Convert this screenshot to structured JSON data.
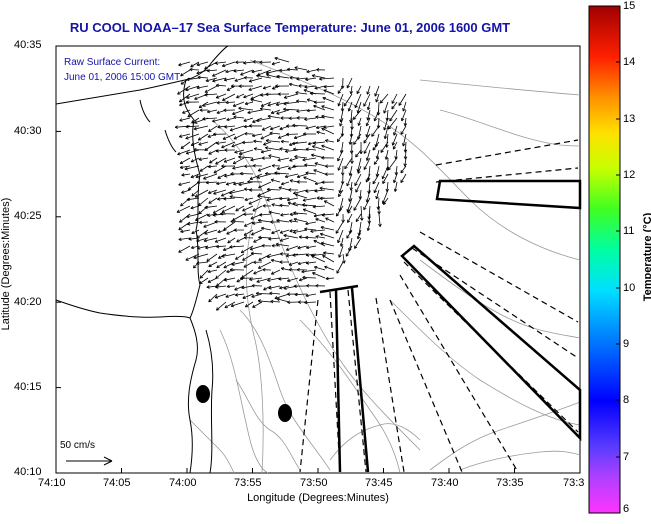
{
  "title": "RU COOL  NOAA–17  Sea Surface Temperature:  June 01, 2006 1600 GMT",
  "annotation_line1": "Raw Surface Current:",
  "annotation_line2": "June 01, 2006 15:00 GMT",
  "scale_label": "50 cm/s",
  "chart_data": {
    "type": "map",
    "xlabel": "Longitude (Degrees:Minutes)",
    "ylabel": "Latitude (Degrees:Minutes)",
    "x_ticks": [
      "74:10",
      "74:05",
      "74:00",
      "73:55",
      "73:50",
      "73:45",
      "73:40",
      "73:35",
      "73:3"
    ],
    "y_ticks": [
      "40:35",
      "40:30",
      "40:25",
      "40:20",
      "40:15",
      "40:10"
    ],
    "colorbar": {
      "label": "Temperature (°C)",
      "ticks": [
        "15",
        "14",
        "13",
        "12",
        "11",
        "10",
        "9",
        "8",
        "7",
        "6"
      ],
      "min": 6,
      "max": 15
    },
    "markers": [
      {
        "name": "buoy",
        "lon": "73:58.8",
        "lat": "40:14.6"
      },
      {
        "name": "buoy",
        "lon": "73:52.3",
        "lat": "40:13.5"
      }
    ]
  }
}
